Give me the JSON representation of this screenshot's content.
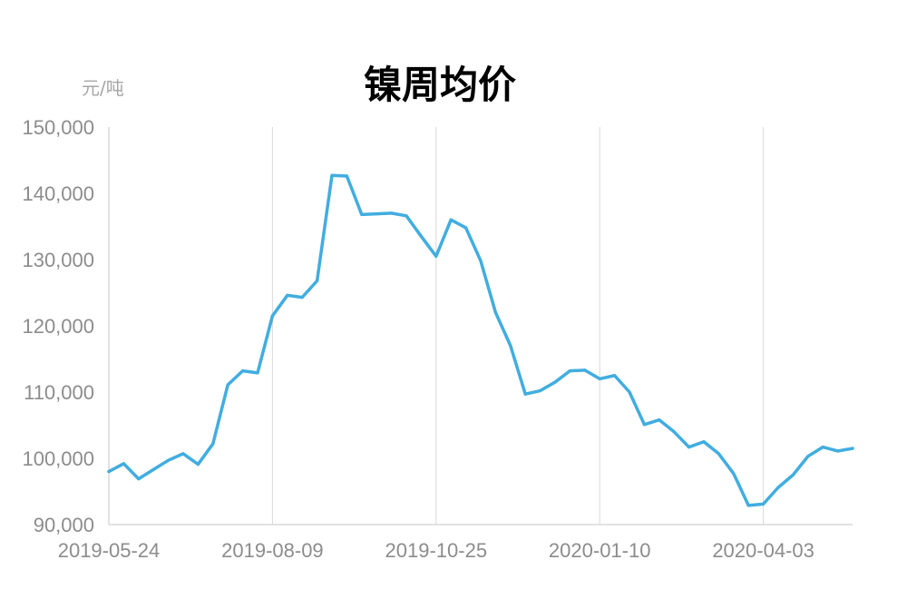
{
  "chart_data": {
    "type": "line",
    "title": "镍周均价",
    "unit_label": "元/吨",
    "xlabel": "",
    "ylabel": "",
    "ylim": [
      90000,
      150000
    ],
    "y_ticks": [
      "90,000",
      "100,000",
      "110,000",
      "120,000",
      "130,000",
      "140,000",
      "150,000"
    ],
    "y_tick_values": [
      90000,
      100000,
      110000,
      120000,
      130000,
      140000,
      150000
    ],
    "x_tick_labels": [
      "2019-05-24",
      "2019-08-09",
      "2019-10-25",
      "2020-01-10",
      "2020-04-03"
    ],
    "x_tick_index": [
      0,
      11,
      22,
      33,
      44
    ],
    "grid": "vertical gridlines at x tick labels",
    "legend": "none",
    "line_color": "#41ade0",
    "grid_color": "#d9d9d9",
    "series": [
      {
        "values": [
          98000,
          99200,
          96900,
          98300,
          99700,
          100700,
          99100,
          102200,
          111100,
          113200,
          112900,
          121500,
          124600,
          124300,
          126800,
          142700,
          142600,
          136800,
          136900,
          137000,
          136600,
          133500,
          130500,
          136000,
          134800,
          129800,
          122000,
          117000,
          109700,
          110200,
          111500,
          113200,
          113300,
          112000,
          112500,
          110000,
          105100,
          105800,
          104000,
          101700,
          102500,
          100700,
          97700,
          92900,
          93100,
          95600,
          97500,
          100300,
          101700,
          101100,
          101500
        ]
      }
    ]
  }
}
